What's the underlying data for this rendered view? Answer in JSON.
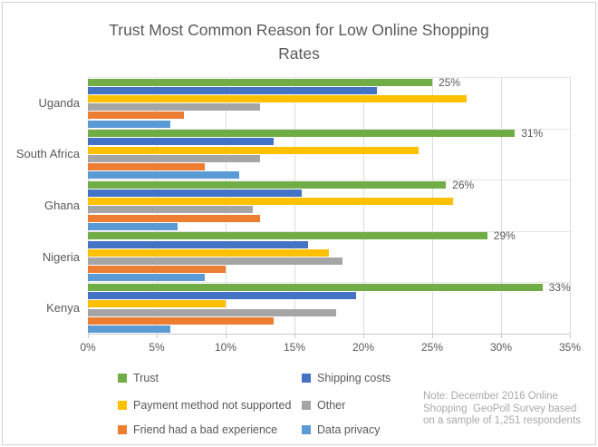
{
  "title_lines": [
    "Trust Most Common Reason for Low Online Shopping",
    "Rates"
  ],
  "note": "Note: December 2016 Online\nShopping  GeoPoll Survey based\non a sample of 1,251 respondents",
  "chart_data": {
    "type": "bar",
    "orientation": "horizontal",
    "title": "Trust Most Common Reason for Low Online Shopping Rates",
    "categories": [
      "Uganda",
      "South Africa",
      "Ghana",
      "Nigeria",
      "Kenya"
    ],
    "series": [
      {
        "name": "Trust",
        "color": "#70AD47",
        "values": [
          25,
          31,
          26,
          29,
          33
        ],
        "labels": [
          "25%",
          "31%",
          "26%",
          "29%",
          "33%"
        ]
      },
      {
        "name": "Shipping costs",
        "color": "#4472C4",
        "values": [
          21,
          13.5,
          15.5,
          16,
          19.5
        ]
      },
      {
        "name": "Payment method not supported",
        "color": "#FFC000",
        "values": [
          27.5,
          24,
          26.5,
          17.5,
          10
        ]
      },
      {
        "name": "Other",
        "color": "#A5A5A5",
        "values": [
          12.5,
          12.5,
          12,
          18.5,
          18
        ]
      },
      {
        "name": "Friend had a bad experience",
        "color": "#ED7D31",
        "values": [
          7,
          8.5,
          12.5,
          10,
          13.5
        ]
      },
      {
        "name": "Data privacy",
        "color": "#5B9BD5",
        "values": [
          6,
          11,
          6.5,
          8.5,
          6
        ]
      }
    ],
    "x_axis": {
      "min": 0,
      "max": 35,
      "tick_step": 5,
      "tick_labels": [
        "0%",
        "5%",
        "10%",
        "15%",
        "20%",
        "25%",
        "30%",
        "35%"
      ]
    },
    "legend_position": "bottom-left-two-columns",
    "grid": "vertical",
    "value_labels_series": "Trust"
  }
}
